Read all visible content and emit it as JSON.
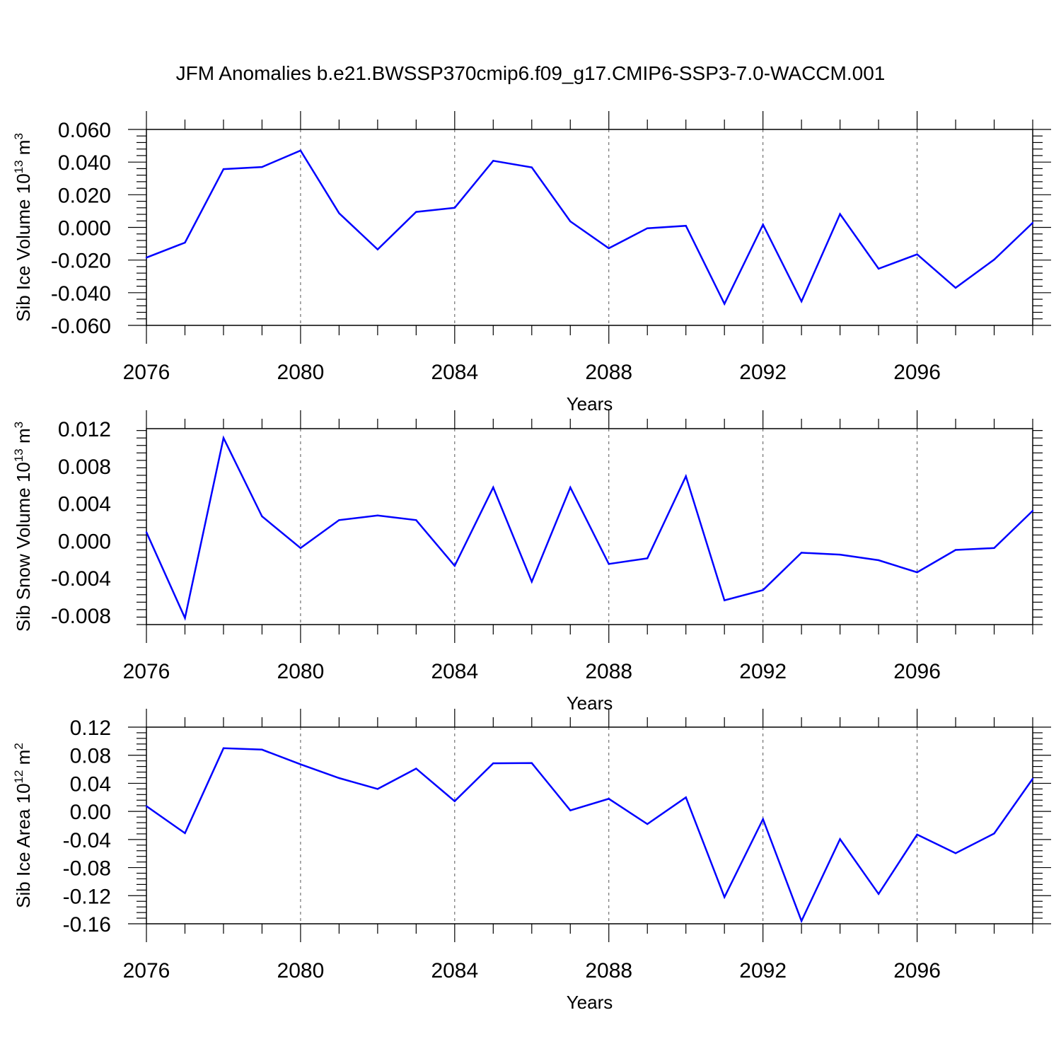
{
  "title": "JFM Anomalies b.e21.BWSSP370cmip6.f09_g17.CMIP6-SSP3-7.0-WACCM.001",
  "colors": {
    "line": "#0000ff",
    "axis": "#000000",
    "grid": "#555555"
  },
  "chart_data": [
    {
      "type": "line",
      "ylabel_main": "Sib Ice Volume 10",
      "ylabel_exp": "13",
      "ylabel_unit": " m",
      "ylabel_unit_exp": "3",
      "xlabel": "Years",
      "xlim": [
        2076,
        2099
      ],
      "ylim": [
        -0.06,
        0.06
      ],
      "xticks": [
        2076,
        2080,
        2084,
        2088,
        2092,
        2096
      ],
      "xtick_labels": [
        "2076",
        "2080",
        "2084",
        "2088",
        "2092",
        "2096"
      ],
      "yticks": [
        -0.06,
        -0.04,
        -0.02,
        0.0,
        0.02,
        0.04,
        0.06
      ],
      "ytick_labels": [
        "-0.060",
        "-0.040",
        "-0.020",
        "0.000",
        "0.020",
        "0.040",
        "0.060"
      ],
      "grid": "vertical dashed at major x ticks",
      "x": [
        2076,
        2077,
        2078,
        2079,
        2080,
        2081,
        2082,
        2083,
        2084,
        2085,
        2086,
        2087,
        2088,
        2089,
        2090,
        2091,
        2092,
        2093,
        2094,
        2095,
        2096,
        2097,
        2098,
        2099
      ],
      "y": [
        -0.0185,
        -0.0093,
        0.0357,
        0.037,
        0.0471,
        0.0087,
        -0.0135,
        0.0095,
        0.012,
        0.0408,
        0.0368,
        0.0037,
        -0.0128,
        -0.0005,
        0.001,
        -0.0468,
        0.0017,
        -0.0453,
        0.0082,
        -0.0253,
        -0.0165,
        -0.037,
        -0.0197,
        0.0028
      ]
    },
    {
      "type": "line",
      "ylabel_main": "Sib Snow Volume 10",
      "ylabel_exp": "13",
      "ylabel_unit": " m",
      "ylabel_unit_exp": "3",
      "xlabel": "Years",
      "xlim": [
        2076,
        2099
      ],
      "ylim": [
        -0.009,
        0.012
      ],
      "xticks": [
        2076,
        2080,
        2084,
        2088,
        2092,
        2096
      ],
      "xtick_labels": [
        "2076",
        "2080",
        "2084",
        "2088",
        "2092",
        "2096"
      ],
      "yticks": [
        -0.008,
        -0.004,
        0.0,
        0.004,
        0.008,
        0.012
      ],
      "ytick_labels": [
        "-0.008",
        "-0.004",
        "0.000",
        "0.004",
        "0.008",
        "0.012"
      ],
      "grid": "vertical dashed at major x ticks",
      "x": [
        2076,
        2077,
        2078,
        2079,
        2080,
        2081,
        2082,
        2083,
        2084,
        2085,
        2086,
        2087,
        2088,
        2089,
        2090,
        2091,
        2092,
        2093,
        2094,
        2095,
        2096,
        2097,
        2098,
        2099
      ],
      "y": [
        0.0009,
        -0.0083,
        0.011,
        0.0026,
        -0.0008,
        0.0022,
        0.0027,
        0.0022,
        -0.0027,
        0.0057,
        -0.0044,
        0.0057,
        -0.0025,
        -0.0019,
        0.0069,
        -0.0064,
        -0.0053,
        -0.0013,
        -0.0015,
        -0.0021,
        -0.0034,
        -0.001,
        -0.0008,
        0.0032
      ]
    },
    {
      "type": "line",
      "ylabel_main": "Sib Ice Area 10",
      "ylabel_exp": "12",
      "ylabel_unit": " m",
      "ylabel_unit_exp": "2",
      "xlabel": "Years",
      "xlim": [
        2076,
        2099
      ],
      "ylim": [
        -0.16,
        0.12
      ],
      "xticks": [
        2076,
        2080,
        2084,
        2088,
        2092,
        2096
      ],
      "xtick_labels": [
        "2076",
        "2080",
        "2084",
        "2088",
        "2092",
        "2096"
      ],
      "yticks": [
        -0.16,
        -0.12,
        -0.08,
        -0.04,
        0.0,
        0.04,
        0.08,
        0.12
      ],
      "ytick_labels": [
        "-0.16",
        "-0.12",
        "-0.08",
        "-0.04",
        "0.00",
        "0.04",
        "0.08",
        "0.12"
      ],
      "grid": "vertical dashed at major x ticks",
      "x": [
        2076,
        2077,
        2078,
        2079,
        2080,
        2081,
        2082,
        2083,
        2084,
        2085,
        2086,
        2087,
        2088,
        2089,
        2090,
        2091,
        2092,
        2093,
        2094,
        2095,
        2096,
        2097,
        2098,
        2099
      ],
      "y": [
        0.0075,
        -0.031,
        0.09,
        0.088,
        0.067,
        0.0475,
        0.032,
        0.061,
        0.0145,
        0.0685,
        0.0688,
        0.0015,
        0.018,
        -0.018,
        0.02,
        -0.122,
        -0.011,
        -0.156,
        -0.0395,
        -0.1175,
        -0.033,
        -0.0595,
        -0.0315,
        0.0465
      ]
    }
  ]
}
